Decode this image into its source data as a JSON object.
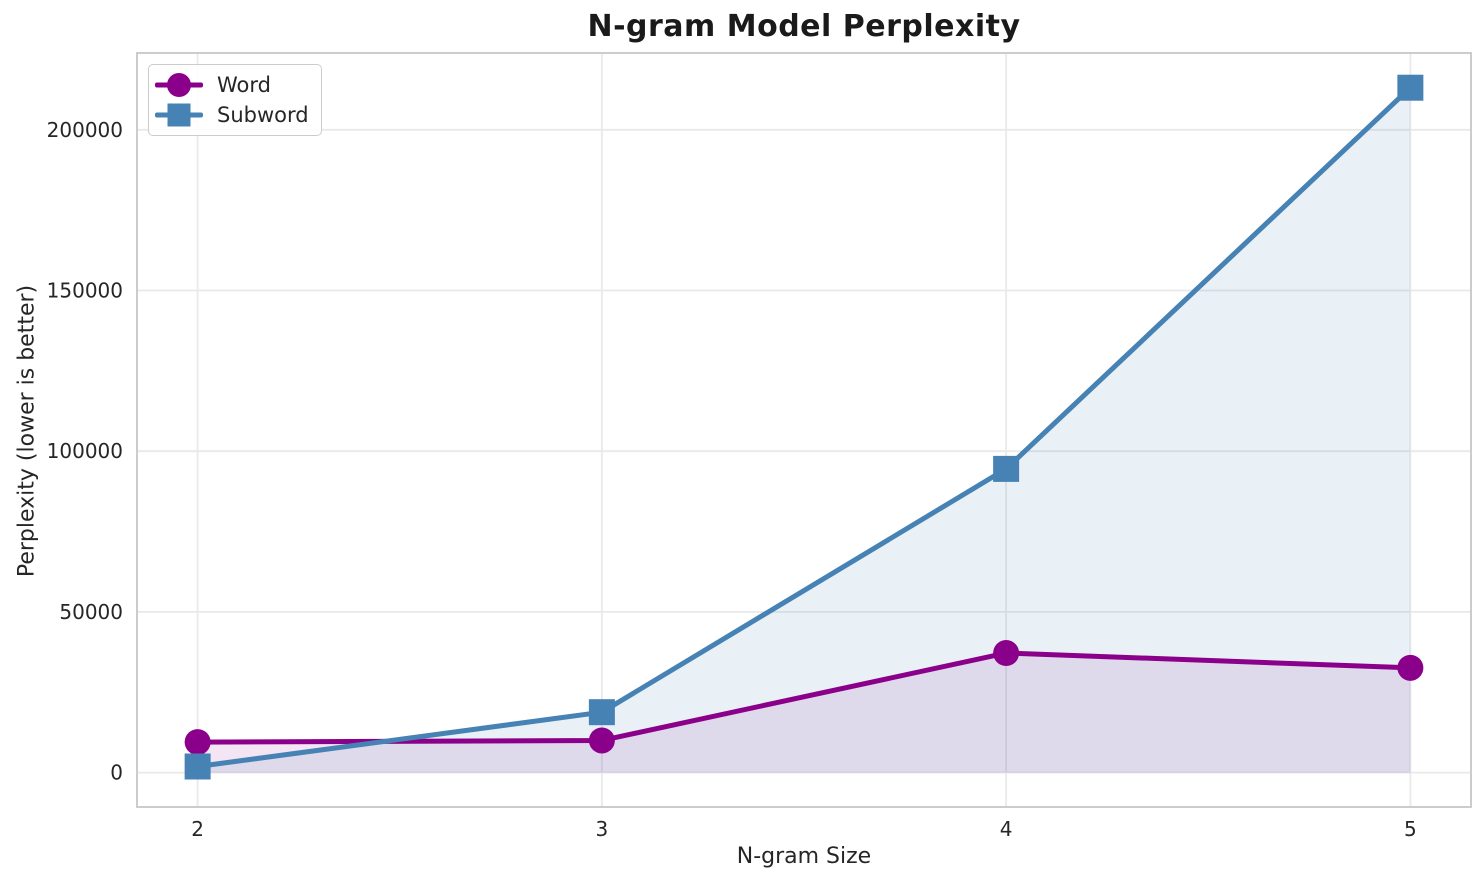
{
  "chart_data": {
    "type": "line",
    "title": "N-gram Model Perplexity",
    "xlabel": "N-gram Size",
    "ylabel": "Perplexity (lower is better)",
    "x": [
      2,
      3,
      4,
      5
    ],
    "series": [
      {
        "name": "Word",
        "color": "#8B008B",
        "marker": "circle",
        "values": [
          9500,
          10000,
          37200,
          32600
        ],
        "fill_opacity": 0.1
      },
      {
        "name": "Subword",
        "color": "#4682B4",
        "marker": "square",
        "values": [
          1900,
          18800,
          94500,
          213100
        ],
        "fill_opacity": 0.12
      }
    ],
    "xticks": {
      "values": [
        2,
        3,
        4,
        5
      ],
      "labels": [
        "2",
        "3",
        "4",
        "5"
      ]
    },
    "yticks": {
      "values": [
        0,
        50000,
        100000,
        150000,
        200000
      ],
      "labels": [
        "0",
        "50000",
        "100000",
        "150000",
        "200000"
      ]
    },
    "xlim": [
      1.85,
      5.15
    ],
    "ylim": [
      -10700,
      223900
    ],
    "grid": true,
    "fill_to_zero": true,
    "legend_position": "upper-left"
  },
  "legend": {
    "items": [
      {
        "label": "Word"
      },
      {
        "label": "Subword"
      }
    ]
  }
}
